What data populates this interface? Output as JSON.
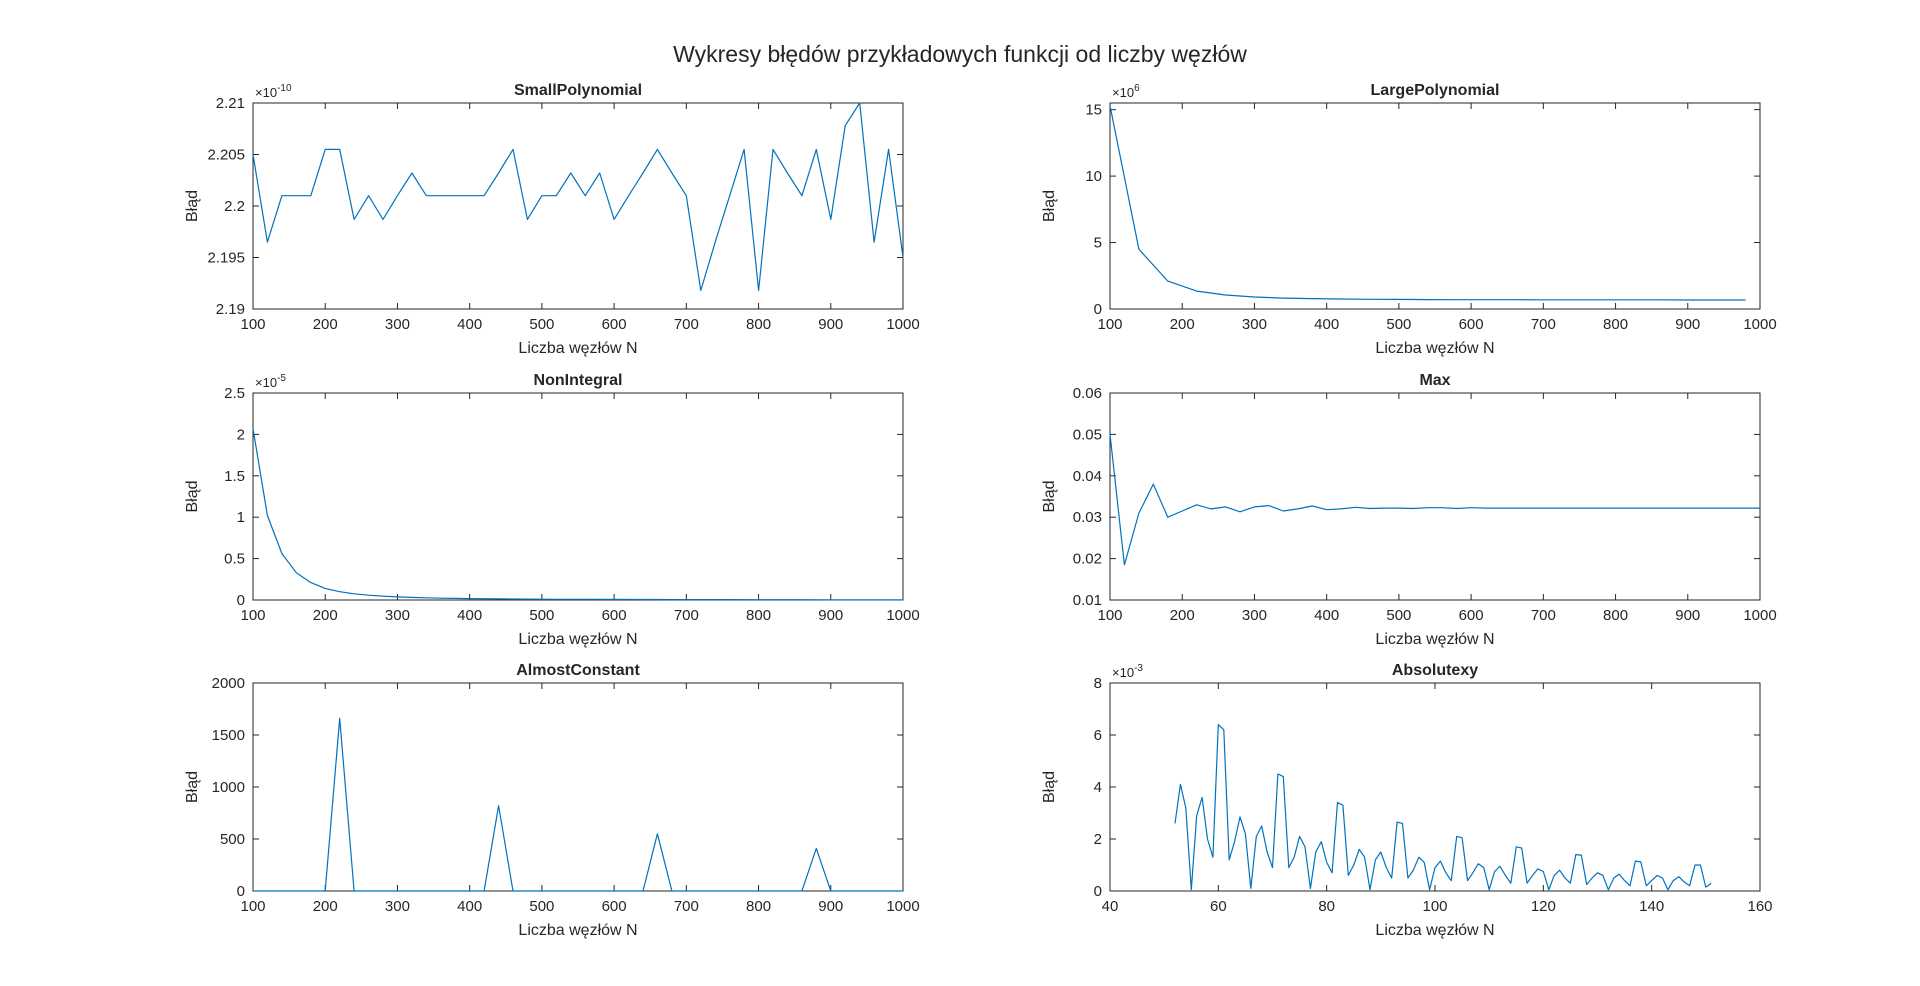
{
  "figure": {
    "title": "Wykresy błędów przykładowych funkcji od liczby węzłów"
  },
  "chart_data": [
    {
      "type": "line",
      "title": "SmallPolynomial",
      "xlabel": "Liczba węzłów N",
      "ylabel": "Błąd",
      "xlim": [
        100,
        1000
      ],
      "ylim": [
        2.19,
        2.21
      ],
      "xticks": [
        100,
        200,
        300,
        400,
        500,
        600,
        700,
        800,
        900,
        1000
      ],
      "yticks": [
        2.19,
        2.195,
        2.2,
        2.205,
        2.21
      ],
      "ytick_labels": [
        "2.19",
        "2.195",
        "2.2",
        "2.205",
        "2.21"
      ],
      "y_exponent_base": "×10",
      "y_exponent": "-10",
      "series": [
        {
          "color": "#0072BD",
          "x": [
            100,
            120,
            140,
            160,
            180,
            200,
            220,
            240,
            260,
            280,
            300,
            320,
            340,
            360,
            380,
            400,
            420,
            440,
            460,
            480,
            500,
            520,
            540,
            560,
            580,
            600,
            620,
            640,
            660,
            680,
            700,
            720,
            740,
            760,
            780,
            800,
            820,
            840,
            860,
            880,
            900,
            920,
            940,
            960,
            980,
            1000
          ],
          "y": [
            2.205,
            2.1965,
            2.201,
            2.201,
            2.201,
            2.2055,
            2.2055,
            2.1987,
            2.201,
            2.1987,
            2.201,
            2.2032,
            2.201,
            2.201,
            2.201,
            2.201,
            2.201,
            2.2032,
            2.2055,
            2.1987,
            2.201,
            2.201,
            2.2032,
            2.201,
            2.2032,
            2.1987,
            2.201,
            2.2032,
            2.2055,
            2.2032,
            2.201,
            2.1918,
            2.1965,
            2.201,
            2.2055,
            2.1918,
            2.2055,
            2.2032,
            2.201,
            2.2055,
            2.1987,
            2.2078,
            2.21,
            2.1965,
            2.2055,
            2.195
          ]
        }
      ]
    },
    {
      "type": "line",
      "title": "LargePolynomial",
      "xlabel": "Liczba węzłów N",
      "ylabel": "Błąd",
      "xlim": [
        100,
        1000
      ],
      "ylim": [
        0,
        15.5
      ],
      "xticks": [
        100,
        200,
        300,
        400,
        500,
        600,
        700,
        800,
        900,
        1000
      ],
      "yticks": [
        0,
        5,
        10,
        15
      ],
      "ytick_labels": [
        "0",
        "5",
        "10",
        "15"
      ],
      "y_exponent_base": "×10",
      "y_exponent": "6",
      "series": [
        {
          "color": "#0072BD",
          "x": [
            100,
            140,
            180,
            220,
            260,
            300,
            340,
            380,
            420,
            460,
            500,
            540,
            580,
            620,
            660,
            700,
            740,
            780,
            820,
            860,
            900,
            940,
            980
          ],
          "y": [
            15.3,
            4.5,
            2.1,
            1.35,
            1.05,
            0.9,
            0.82,
            0.78,
            0.75,
            0.73,
            0.72,
            0.71,
            0.7,
            0.7,
            0.7,
            0.69,
            0.69,
            0.69,
            0.69,
            0.69,
            0.68,
            0.68,
            0.68
          ]
        }
      ]
    },
    {
      "type": "line",
      "title": "NonIntegral",
      "xlabel": "Liczba węzłów N",
      "ylabel": "Błąd",
      "xlim": [
        100,
        1000
      ],
      "ylim": [
        0,
        2.5
      ],
      "xticks": [
        100,
        200,
        300,
        400,
        500,
        600,
        700,
        800,
        900,
        1000
      ],
      "yticks": [
        0,
        0.5,
        1,
        1.5,
        2,
        2.5
      ],
      "ytick_labels": [
        "0",
        "0.5",
        "1",
        "1.5",
        "2",
        "2.5"
      ],
      "y_exponent_base": "×10",
      "y_exponent": "-5",
      "series": [
        {
          "color": "#0072BD",
          "x": [
            100,
            120,
            140,
            160,
            180,
            200,
            220,
            240,
            260,
            280,
            300,
            320,
            340,
            360,
            380,
            400,
            440,
            480,
            520,
            560,
            600,
            650,
            700,
            750,
            800,
            850,
            900,
            950,
            1000
          ],
          "y": [
            2.07,
            1.02,
            0.56,
            0.33,
            0.21,
            0.14,
            0.1,
            0.075,
            0.058,
            0.046,
            0.037,
            0.031,
            0.026,
            0.022,
            0.019,
            0.017,
            0.013,
            0.011,
            0.009,
            0.008,
            0.007,
            0.006,
            0.005,
            0.005,
            0.004,
            0.004,
            0.003,
            0.003,
            0.003
          ]
        }
      ]
    },
    {
      "type": "line",
      "title": "Max",
      "xlabel": "Liczba węzłów N",
      "ylabel": "Błąd",
      "xlim": [
        100,
        1000
      ],
      "ylim": [
        0.01,
        0.06
      ],
      "xticks": [
        100,
        200,
        300,
        400,
        500,
        600,
        700,
        800,
        900,
        1000
      ],
      "yticks": [
        0.01,
        0.02,
        0.03,
        0.04,
        0.05,
        0.06
      ],
      "ytick_labels": [
        "0.01",
        "0.02",
        "0.03",
        "0.04",
        "0.05",
        "0.06"
      ],
      "y_exponent_base": "",
      "y_exponent": "",
      "series": [
        {
          "color": "#0072BD",
          "x": [
            100,
            120,
            140,
            160,
            180,
            200,
            220,
            240,
            260,
            280,
            300,
            320,
            340,
            360,
            380,
            400,
            420,
            440,
            460,
            480,
            500,
            520,
            540,
            560,
            580,
            600,
            620,
            640,
            660,
            680,
            700,
            740,
            780,
            820,
            860,
            900,
            940,
            980,
            1000
          ],
          "y": [
            0.05,
            0.0185,
            0.031,
            0.038,
            0.03,
            0.0315,
            0.033,
            0.032,
            0.0325,
            0.0313,
            0.0325,
            0.0328,
            0.0315,
            0.032,
            0.0327,
            0.0318,
            0.032,
            0.0324,
            0.0321,
            0.0322,
            0.0322,
            0.0321,
            0.0323,
            0.0323,
            0.0321,
            0.0323,
            0.0322,
            0.0322,
            0.0322,
            0.0322,
            0.0322,
            0.0322,
            0.0322,
            0.0322,
            0.0322,
            0.0322,
            0.0322,
            0.0322,
            0.0322
          ]
        }
      ]
    },
    {
      "type": "line",
      "title": "AlmostConstant",
      "xlabel": "Liczba węzłów N",
      "ylabel": "Błąd",
      "xlim": [
        100,
        1000
      ],
      "ylim": [
        0,
        2000
      ],
      "xticks": [
        100,
        200,
        300,
        400,
        500,
        600,
        700,
        800,
        900,
        1000
      ],
      "yticks": [
        0,
        500,
        1000,
        1500,
        2000
      ],
      "ytick_labels": [
        "0",
        "500",
        "1000",
        "1500",
        "2000"
      ],
      "y_exponent_base": "",
      "y_exponent": "",
      "series": [
        {
          "color": "#0072BD",
          "x": [
            100,
            200,
            220,
            240,
            420,
            440,
            460,
            640,
            660,
            680,
            860,
            880,
            900,
            1000
          ],
          "y": [
            0,
            0,
            1660,
            0,
            0,
            820,
            0,
            0,
            550,
            0,
            0,
            410,
            0,
            0
          ]
        }
      ]
    },
    {
      "type": "line",
      "title": "Absolutexy",
      "xlabel": "Liczba węzłów N",
      "ylabel": "Błąd",
      "xlim": [
        40,
        160
      ],
      "ylim": [
        0,
        8
      ],
      "xticks": [
        40,
        60,
        80,
        100,
        120,
        140,
        160
      ],
      "yticks": [
        0,
        2,
        4,
        6,
        8
      ],
      "ytick_labels": [
        "0",
        "2",
        "4",
        "6",
        "8"
      ],
      "y_exponent_base": "×10",
      "y_exponent": "-3",
      "series": [
        {
          "color": "#0072BD",
          "x": [
            52,
            53,
            54,
            55,
            56,
            57,
            58,
            59,
            60,
            61,
            62,
            63,
            64,
            65,
            66,
            67,
            68,
            69,
            70,
            71,
            72,
            73,
            74,
            75,
            76,
            77,
            78,
            79,
            80,
            81,
            82,
            83,
            84,
            85,
            86,
            87,
            88,
            89,
            90,
            91,
            92,
            93,
            94,
            95,
            96,
            97,
            98,
            99,
            100,
            101,
            102,
            103,
            104,
            105,
            106,
            107,
            108,
            109,
            110,
            111,
            112,
            113,
            114,
            115,
            116,
            117,
            118,
            119,
            120,
            121,
            122,
            123,
            124,
            125,
            126,
            127,
            128,
            129,
            130,
            131,
            132,
            133,
            134,
            135,
            136,
            137,
            138,
            139,
            140,
            141,
            142,
            143,
            144,
            145,
            146,
            147,
            148,
            149,
            150,
            151
          ],
          "y": [
            2.6,
            4.1,
            3.2,
            0.05,
            2.9,
            3.6,
            2.0,
            1.3,
            6.4,
            6.2,
            1.2,
            1.9,
            2.85,
            2.2,
            0.1,
            2.1,
            2.5,
            1.5,
            0.9,
            4.5,
            4.4,
            0.9,
            1.3,
            2.1,
            1.7,
            0.1,
            1.5,
            1.9,
            1.1,
            0.7,
            3.4,
            3.3,
            0.6,
            1.0,
            1.6,
            1.3,
            0.05,
            1.2,
            1.5,
            0.9,
            0.5,
            2.65,
            2.6,
            0.5,
            0.8,
            1.3,
            1.1,
            0.05,
            0.9,
            1.15,
            0.7,
            0.4,
            2.1,
            2.05,
            0.4,
            0.7,
            1.05,
            0.9,
            0.05,
            0.75,
            0.95,
            0.6,
            0.3,
            1.7,
            1.65,
            0.3,
            0.6,
            0.85,
            0.75,
            0.05,
            0.6,
            0.8,
            0.5,
            0.3,
            1.4,
            1.38,
            0.25,
            0.5,
            0.7,
            0.6,
            0.05,
            0.5,
            0.65,
            0.4,
            0.2,
            1.15,
            1.12,
            0.2,
            0.4,
            0.6,
            0.5,
            0.05,
            0.4,
            0.55,
            0.35,
            0.2,
            1.0,
            1.0,
            0.15,
            0.3
          ]
        }
      ]
    }
  ]
}
